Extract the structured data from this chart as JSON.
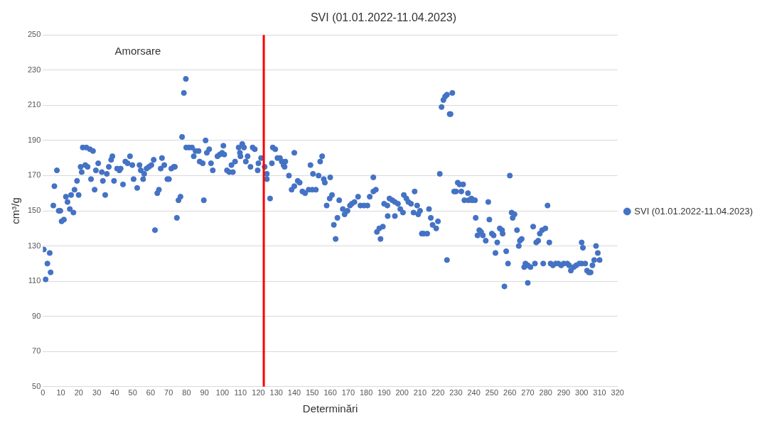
{
  "chart_data": {
    "type": "scatter",
    "title": "SVI (01.01.2022-11.04.2023)",
    "xlabel": "Determinări",
    "ylabel": "cm³/g",
    "annotations": [
      "Amorsare"
    ],
    "xlim": [
      0,
      320
    ],
    "xticks": [
      0,
      10,
      20,
      30,
      40,
      50,
      60,
      70,
      80,
      90,
      100,
      110,
      120,
      130,
      140,
      150,
      160,
      170,
      180,
      190,
      200,
      210,
      220,
      230,
      240,
      250,
      260,
      270,
      280,
      290,
      300,
      310,
      320
    ],
    "ylim": [
      50,
      250
    ],
    "yticks": [
      50,
      70,
      90,
      110,
      130,
      150,
      170,
      190,
      210,
      230,
      250
    ],
    "grid": "y",
    "legend": "right",
    "marker": "circle",
    "ref_lines": [
      {
        "axis": "x",
        "value": 123,
        "color": "#ff0000"
      }
    ],
    "series": [
      {
        "name": "SVI (01.01.2022-11.04.2023)",
        "color": "#4472c4",
        "x": [
          0.5,
          1.5,
          2.5,
          3.8,
          4.3,
          5.8,
          6.4,
          7.8,
          8.8,
          9.7,
          10.4,
          11.7,
          12.8,
          13.7,
          15,
          15.7,
          17,
          17.6,
          19,
          19.9,
          21,
          21.6,
          22.2,
          23.6,
          24.2,
          24.9,
          26.2,
          26.8,
          27.9,
          28.8,
          29.5,
          30.8,
          32.8,
          33.4,
          34.7,
          35.6,
          36.7,
          38,
          38.7,
          39.6,
          41.3,
          42.6,
          43.3,
          44.6,
          45.9,
          47.2,
          48.5,
          49.8,
          50.5,
          52.5,
          53.8,
          54.5,
          55.8,
          56.4,
          57.7,
          59,
          60.4,
          61.7,
          62.4,
          63.7,
          64.6,
          65.6,
          66.3,
          67.6,
          69.3,
          70.2,
          71.5,
          72.9,
          73.5,
          74.6,
          75.5,
          76.6,
          77.5,
          78.5,
          79.6,
          79.8,
          81.4,
          83,
          84,
          85,
          86.7,
          87.3,
          89,
          89.6,
          90.6,
          91.3,
          92.6,
          93.6,
          94.6,
          97.2,
          98.5,
          99.8,
          100.5,
          101,
          102.5,
          103.8,
          105,
          105.8,
          107,
          109,
          109.7,
          110,
          111,
          112,
          113,
          114,
          115.6,
          116.8,
          118,
          119.6,
          120,
          121.5,
          123.5,
          124.7,
          124.7,
          126.5,
          127.5,
          128,
          129.4,
          130.6,
          132,
          133,
          134,
          134.6,
          135,
          137,
          138.5,
          140,
          140,
          141.9,
          143,
          144.5,
          146,
          148,
          149,
          150,
          150.4,
          152,
          153.5,
          154.4,
          155.5,
          156.4,
          157,
          158,
          159.7,
          160,
          161,
          162,
          163,
          164,
          165,
          167,
          168,
          169.6,
          171,
          172,
          173.5,
          175.5,
          176.8,
          178.8,
          180.7,
          182,
          184,
          184,
          185.4,
          186,
          187.3,
          188,
          189.3,
          190,
          191.8,
          192,
          193,
          194.6,
          196,
          196,
          197.7,
          199,
          200.5,
          201,
          202.4,
          203.5,
          205,
          206.4,
          207,
          208.4,
          209,
          210,
          211,
          212,
          214,
          215,
          216,
          217,
          219,
          220,
          221,
          222,
          223,
          224,
          225,
          225,
          226.5,
          227,
          228,
          229,
          230,
          231,
          232,
          233,
          234,
          234.7,
          236.7,
          237,
          238.6,
          239,
          240.6,
          241,
          242,
          243,
          244,
          245,
          246.6,
          248,
          248.6,
          250,
          251,
          252,
          253,
          254.4,
          255.7,
          256,
          257,
          258,
          259,
          260,
          261,
          261.6,
          262.6,
          264,
          265,
          265.6,
          266.6,
          268,
          268.7,
          270,
          270,
          271.5,
          273,
          274,
          274.7,
          275.8,
          276.7,
          278,
          278.6,
          279.8,
          281,
          282,
          282.7,
          284,
          285.6,
          287,
          288.6,
          290,
          292,
          293,
          294,
          295.6,
          297,
          298.7,
          300,
          300,
          300.7,
          302,
          303,
          304,
          305,
          306,
          307,
          308,
          309,
          310
        ],
        "values": [
          128,
          111,
          120,
          126,
          115,
          153,
          164,
          173,
          150,
          150,
          144,
          145,
          158,
          155,
          151,
          159,
          149,
          162,
          167,
          159,
          175,
          172,
          186,
          176,
          186,
          175,
          185,
          168,
          184,
          162,
          173,
          177,
          172,
          167,
          159,
          171,
          175,
          179,
          181,
          167,
          174,
          173,
          174,
          165,
          178,
          177,
          181,
          176,
          168,
          163,
          176,
          173,
          168,
          171,
          174,
          175,
          176,
          179,
          139,
          160,
          162,
          174,
          180,
          176,
          168,
          168,
          174,
          175,
          175,
          146,
          156,
          158,
          192,
          217,
          225,
          186,
          186,
          186,
          181,
          184,
          184,
          178,
          177,
          156,
          190,
          183,
          185,
          177,
          173,
          181,
          182,
          183,
          187,
          182,
          173,
          172,
          176,
          172,
          178,
          186,
          183,
          181,
          188,
          186,
          178,
          181,
          175,
          186,
          185,
          173,
          177,
          180,
          175,
          171,
          168,
          157,
          177,
          186,
          185,
          180,
          180,
          178,
          176,
          175,
          178,
          170,
          162,
          164,
          183,
          167,
          166,
          161,
          160,
          162,
          176,
          162,
          171,
          162,
          170,
          178,
          181,
          168,
          166,
          153,
          157,
          169,
          159,
          142,
          134,
          146,
          156,
          151,
          148,
          150,
          153,
          154,
          155,
          158,
          153,
          153,
          153,
          158,
          161,
          169,
          162,
          138,
          140,
          134,
          141,
          154,
          153,
          147,
          157,
          156,
          155,
          147,
          154,
          151,
          149,
          159,
          157,
          155,
          154,
          149,
          161,
          153,
          148,
          150,
          137,
          137,
          137,
          151,
          146,
          142,
          140,
          144,
          171,
          209,
          213,
          215,
          216,
          122,
          205,
          205,
          217,
          161,
          161,
          166,
          165,
          161,
          165,
          156,
          160,
          156,
          157,
          156,
          156,
          146,
          136,
          139,
          138,
          136,
          133,
          155,
          145,
          137,
          136,
          126,
          132,
          140,
          139,
          137,
          107,
          127,
          120,
          170,
          149,
          146,
          148,
          139,
          130,
          133,
          134,
          118,
          120,
          119,
          109,
          118,
          141,
          120,
          132,
          133,
          137,
          139,
          120,
          140,
          153,
          132,
          120,
          119,
          120,
          120,
          119,
          120,
          120,
          119,
          116,
          118,
          119,
          120,
          120,
          132,
          129,
          120,
          116,
          115,
          115,
          119,
          122,
          130,
          126,
          122
        ]
      }
    ]
  }
}
